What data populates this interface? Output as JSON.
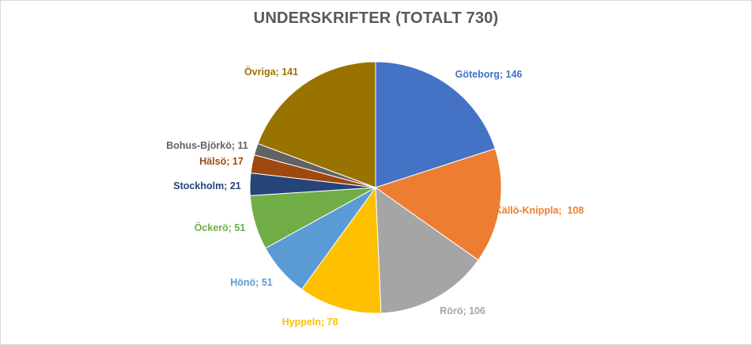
{
  "chart_data": {
    "type": "pie",
    "title": "UNDERSKRIFTER (TOTALT 730)",
    "slices": [
      {
        "name": "Göteborg",
        "value": 146,
        "label": "Göteborg; 146",
        "color": "#4472c4"
      },
      {
        "name": "Källö-Knippla",
        "value": 108,
        "label": "Källö-Knippla;  108",
        "color": "#ed7d31"
      },
      {
        "name": "Rörö",
        "value": 106,
        "label": "Rörö; 106",
        "color": "#a5a5a5"
      },
      {
        "name": "Hyppeln",
        "value": 78,
        "label": "Hyppeln; 78",
        "color": "#ffc000"
      },
      {
        "name": "Hönö",
        "value": 51,
        "label": "Hönö; 51",
        "color": "#5b9bd5"
      },
      {
        "name": "Öckerö",
        "value": 51,
        "label": "Öckerö; 51",
        "color": "#70ad47"
      },
      {
        "name": "Stockholm",
        "value": 21,
        "label": "Stockholm; 21",
        "color": "#264478"
      },
      {
        "name": "Hälsö",
        "value": 17,
        "label": "Hälsö; 17",
        "color": "#9e480e"
      },
      {
        "name": "Bohus-Björkö",
        "value": 11,
        "label": "Bohus-Björkö; 11",
        "color": "#636363"
      },
      {
        "name": "Övriga",
        "value": 141,
        "label": "Övriga; 141",
        "color": "#997300"
      }
    ]
  }
}
